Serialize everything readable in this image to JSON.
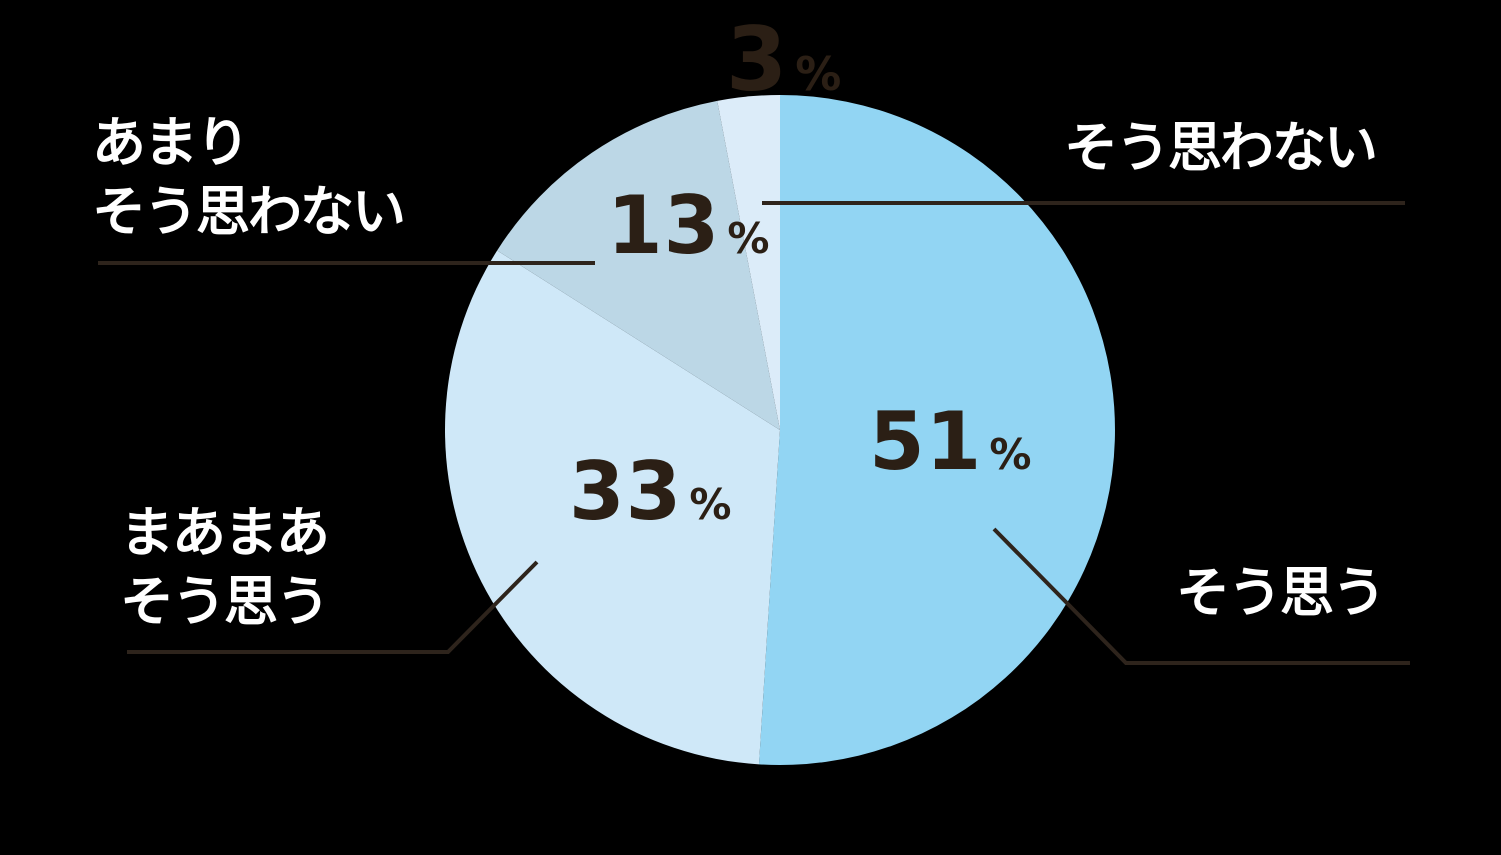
{
  "colors": {
    "bg": "#000000",
    "dark_text": "#2b1f15",
    "light_text": "#ffffff",
    "leader_line": "#2e241c"
  },
  "chart_data": {
    "type": "pie",
    "title": "",
    "direction": "clockwise",
    "start_angle": "12-oclock",
    "unit": "%",
    "legend_position": "callout-labels",
    "slices": [
      {
        "label": "そう思う",
        "label_lines": [
          "そう思う"
        ],
        "value": 51,
        "value_label": "51",
        "unit": "%",
        "color": "#92d5f3",
        "callout_side": "bottom-right"
      },
      {
        "label": "まあまあそう思う",
        "label_lines": [
          "まあまあ",
          "そう思う"
        ],
        "value": 33,
        "value_label": "33",
        "unit": "%",
        "color": "#cfe8f8",
        "callout_side": "bottom-left"
      },
      {
        "label": "あまりそう思わない",
        "label_lines": [
          "あまり",
          "そう思わない"
        ],
        "value": 13,
        "value_label": "13",
        "unit": "%",
        "color": "#bcd7e6",
        "callout_side": "left"
      },
      {
        "label": "そう思わない",
        "label_lines": [
          "そう思わない"
        ],
        "value": 3,
        "value_label": "3",
        "unit": "%",
        "color": "#dcecf9",
        "callout_side": "top-right"
      }
    ]
  }
}
